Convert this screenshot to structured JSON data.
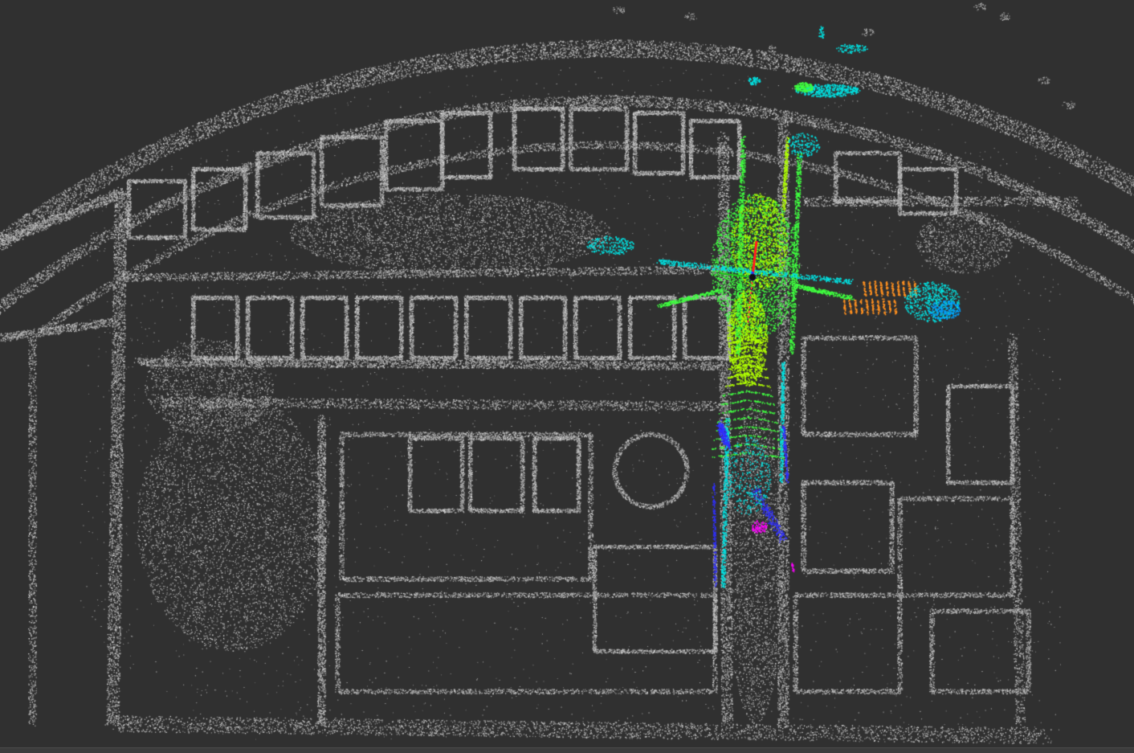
{
  "viewer": {
    "background_color": "#303030",
    "map_cloud_color": "#c8c8c8",
    "scan_colormap": [
      "#ff00ff",
      "#3030ff",
      "#00a0ff",
      "#00e0e0",
      "#40ff40",
      "#b0ff00",
      "#ff9020"
    ],
    "axis_colors": {
      "x": "#ff2020",
      "y": "#20ff20",
      "z": "#2040ff"
    },
    "display_items": [
      "map-point-cloud",
      "current-scan-point-cloud",
      "robot-axes"
    ]
  }
}
